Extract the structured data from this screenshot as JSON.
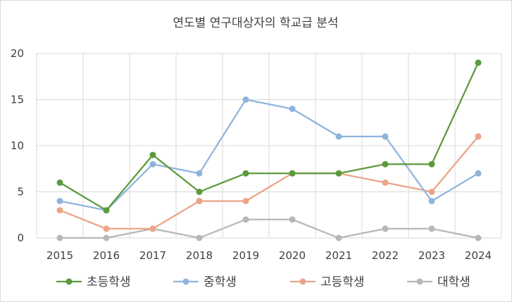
{
  "chart_data": {
    "type": "line",
    "title": "연도별 연구대상자의 학교급 분석",
    "categories": [
      "2015",
      "2016",
      "2017",
      "2018",
      "2019",
      "2020",
      "2021",
      "2022",
      "2023",
      "2024"
    ],
    "ylim": [
      0,
      20
    ],
    "yticks": [
      0,
      5,
      10,
      15,
      20
    ],
    "grid": true,
    "legend_position": "bottom",
    "series": [
      {
        "name": "초등학생",
        "color": "#5b9a3c",
        "values": [
          6,
          3,
          9,
          5,
          7,
          7,
          7,
          8,
          8,
          19
        ]
      },
      {
        "name": "중학생",
        "color": "#8fb4dc",
        "values": [
          4,
          3,
          8,
          7,
          15,
          14,
          11,
          11,
          4,
          7
        ]
      },
      {
        "name": "고등학생",
        "color": "#eba487",
        "values": [
          3,
          1,
          1,
          4,
          4,
          7,
          7,
          6,
          5,
          11
        ]
      },
      {
        "name": "대학생",
        "color": "#b7b7b7",
        "values": [
          0,
          0,
          1,
          0,
          2,
          2,
          0,
          1,
          1,
          0
        ]
      }
    ]
  }
}
